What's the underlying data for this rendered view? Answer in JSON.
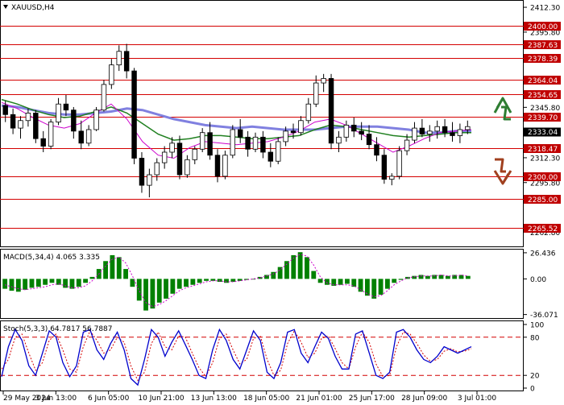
{
  "window": {
    "title": "XAUUSD,H4",
    "title_icon": "dropdown-triangle-icon"
  },
  "colors": {
    "up_candle": "#ffffff",
    "down_candle": "#000000",
    "level_line": "#d40000",
    "level_box": "#c00000",
    "ma_slow": "#8080e0",
    "ma_mid": "#208020",
    "ma_fast": "#cc00cc",
    "macd_hist": "#008000",
    "macd_signal": "#cc00cc",
    "stoch_main": "#0000cc",
    "stoch_signal": "#d40000",
    "arrow_up": "#2e7d32",
    "arrow_down": "#a0401f"
  },
  "chart_data": [
    {
      "type": "candlestick",
      "symbol": "XAUUSD",
      "timeframe": "H4",
      "ylim": [
        2255,
        2415
      ],
      "y_ticks": [
        "2412.30",
        "2395.80",
        "2345.80",
        "2329.30",
        "2312.30",
        "2295.80",
        "2262.80"
      ],
      "levels": [
        "2400.00",
        "2387.63",
        "2378.39",
        "2364.04",
        "2354.65",
        "2339.70",
        "2318.47",
        "2300.00",
        "2285.00",
        "2265.52"
      ],
      "current_price": "2333.04",
      "moving_averages": [
        {
          "color": "slow",
          "values": [
            2347,
            2346,
            2344,
            2342,
            2341,
            2341,
            2342,
            2343,
            2345,
            2344,
            2341,
            2338,
            2336,
            2334,
            2333,
            2332,
            2333,
            2332,
            2331,
            2331,
            2331,
            2332,
            2333,
            2333,
            2333,
            2332,
            2331,
            2329,
            2329,
            2330,
            2330
          ]
        },
        {
          "color": "mid",
          "values": [
            2351,
            2348,
            2344,
            2341,
            2339,
            2340,
            2343,
            2346,
            2342,
            2335,
            2328,
            2324,
            2325,
            2327,
            2327,
            2326,
            2325,
            2325,
            2326,
            2327,
            2331,
            2334,
            2333,
            2331,
            2329,
            2327,
            2326,
            2327,
            2328,
            2329,
            2329
          ]
        },
        {
          "color": "fast",
          "values": [
            2349,
            2345,
            2339,
            2334,
            2332,
            2335,
            2342,
            2348,
            2338,
            2323,
            2314,
            2312,
            2319,
            2323,
            2322,
            2321,
            2322,
            2323,
            2326,
            2330,
            2336,
            2338,
            2334,
            2328,
            2322,
            2316,
            2320,
            2325,
            2329,
            2330,
            2331
          ]
        }
      ],
      "candles": [
        [
          2347,
          2350,
          2336,
          2341
        ],
        [
          2341,
          2345,
          2328,
          2332
        ],
        [
          2332,
          2340,
          2325,
          2337
        ],
        [
          2337,
          2345,
          2333,
          2342
        ],
        [
          2342,
          2344,
          2322,
          2325
        ],
        [
          2325,
          2330,
          2316,
          2320
        ],
        [
          2320,
          2338,
          2318,
          2336
        ],
        [
          2336,
          2352,
          2334,
          2348
        ],
        [
          2348,
          2354,
          2340,
          2344
        ],
        [
          2344,
          2346,
          2325,
          2330
        ],
        [
          2330,
          2337,
          2318,
          2322
        ],
        [
          2322,
          2334,
          2320,
          2331
        ],
        [
          2331,
          2346,
          2330,
          2344
        ],
        [
          2344,
          2364,
          2343,
          2361
        ],
        [
          2361,
          2378,
          2358,
          2374
        ],
        [
          2374,
          2387,
          2370,
          2383
        ],
        [
          2383,
          2388,
          2365,
          2370
        ],
        [
          2370,
          2372,
          2308,
          2312
        ],
        [
          2312,
          2316,
          2289,
          2294
        ],
        [
          2294,
          2305,
          2286,
          2301
        ],
        [
          2301,
          2312,
          2297,
          2309
        ],
        [
          2309,
          2320,
          2305,
          2316
        ],
        [
          2316,
          2326,
          2312,
          2322
        ],
        [
          2322,
          2327,
          2298,
          2301
        ],
        [
          2301,
          2314,
          2299,
          2311
        ],
        [
          2311,
          2320,
          2308,
          2318
        ],
        [
          2318,
          2332,
          2316,
          2329
        ],
        [
          2329,
          2336,
          2311,
          2314
        ],
        [
          2314,
          2318,
          2296,
          2300
        ],
        [
          2300,
          2317,
          2298,
          2314
        ],
        [
          2314,
          2334,
          2312,
          2331
        ],
        [
          2331,
          2338,
          2322,
          2326
        ],
        [
          2326,
          2330,
          2313,
          2318
        ],
        [
          2318,
          2329,
          2316,
          2326
        ],
        [
          2326,
          2330,
          2312,
          2316
        ],
        [
          2316,
          2322,
          2306,
          2310
        ],
        [
          2310,
          2326,
          2308,
          2323
        ],
        [
          2323,
          2333,
          2320,
          2330
        ],
        [
          2330,
          2335,
          2325,
          2329
        ],
        [
          2329,
          2340,
          2327,
          2337
        ],
        [
          2337,
          2352,
          2335,
          2348
        ],
        [
          2348,
          2367,
          2346,
          2362
        ],
        [
          2362,
          2368,
          2356,
          2365
        ],
        [
          2365,
          2368,
          2318,
          2322
        ],
        [
          2322,
          2330,
          2316,
          2326
        ],
        [
          2326,
          2337,
          2323,
          2334
        ],
        [
          2334,
          2339,
          2326,
          2330
        ],
        [
          2330,
          2336,
          2324,
          2328
        ],
        [
          2328,
          2334,
          2318,
          2321
        ],
        [
          2321,
          2326,
          2310,
          2314
        ],
        [
          2314,
          2318,
          2295,
          2298
        ],
        [
          2298,
          2302,
          2294,
          2300
        ],
        [
          2300,
          2320,
          2298,
          2317
        ],
        [
          2317,
          2328,
          2314,
          2324
        ],
        [
          2324,
          2336,
          2322,
          2332
        ],
        [
          2332,
          2338,
          2326,
          2328
        ],
        [
          2328,
          2334,
          2323,
          2330
        ],
        [
          2330,
          2337,
          2325,
          2333
        ],
        [
          2333,
          2338,
          2326,
          2329
        ],
        [
          2329,
          2336,
          2323,
          2327
        ],
        [
          2327,
          2335,
          2322,
          2331
        ],
        [
          2331,
          2337,
          2328,
          2333
        ]
      ]
    },
    {
      "type": "bar",
      "title": "MACD(5,34,4)",
      "main_value": "4.065",
      "signal_value": "3.335",
      "y_ticks": [
        "26.436",
        "0.00",
        "-36.071"
      ],
      "ylim": [
        -38,
        28
      ],
      "histogram": [
        -10,
        -12,
        -13,
        -11,
        -9,
        -8,
        -6,
        -4,
        -6,
        -9,
        -10,
        -8,
        -4,
        2,
        10,
        18,
        24,
        22,
        10,
        -8,
        -22,
        -32,
        -30,
        -24,
        -20,
        -15,
        -10,
        -8,
        -6,
        -4,
        -2,
        -2,
        -3,
        -4,
        -3,
        -2,
        -1,
        0,
        2,
        4,
        7,
        12,
        18,
        24,
        27,
        22,
        8,
        -4,
        -6,
        -7,
        -6,
        -5,
        -8,
        -13,
        -17,
        -20,
        -16,
        -10,
        -4,
        -1,
        2,
        3,
        4,
        3,
        4,
        4,
        3,
        4,
        4,
        3
      ],
      "signal": [
        -6,
        -8,
        -10,
        -11,
        -10,
        -9,
        -8,
        -6,
        -5,
        -7,
        -9,
        -9,
        -7,
        -2,
        5,
        13,
        20,
        22,
        16,
        3,
        -12,
        -24,
        -28,
        -26,
        -22,
        -17,
        -12,
        -9,
        -7,
        -5,
        -3,
        -2,
        -2,
        -3,
        -3,
        -2,
        -1,
        0,
        1,
        3,
        5,
        9,
        15,
        21,
        25,
        23,
        14,
        2,
        -4,
        -6,
        -6,
        -6,
        -7,
        -11,
        -15,
        -18,
        -17,
        -12,
        -6,
        -2,
        1,
        2,
        3,
        3,
        3,
        4,
        3,
        3,
        4,
        3
      ]
    },
    {
      "type": "line",
      "title": "Stoch(5,3,3)",
      "main_value": "64.7817",
      "signal_value": "56.7887",
      "y_ticks": [
        "100",
        "80",
        "20",
        "0"
      ],
      "levels": [
        80,
        20
      ],
      "ylim": [
        0,
        100
      ],
      "main": [
        18,
        65,
        92,
        75,
        35,
        20,
        55,
        90,
        80,
        40,
        18,
        35,
        88,
        92,
        60,
        45,
        70,
        88,
        60,
        15,
        5,
        45,
        92,
        80,
        50,
        72,
        90,
        68,
        45,
        20,
        15,
        60,
        92,
        75,
        45,
        30,
        60,
        90,
        75,
        25,
        15,
        40,
        88,
        92,
        55,
        40,
        65,
        88,
        78,
        50,
        30,
        30,
        85,
        90,
        55,
        20,
        15,
        25,
        88,
        92,
        80,
        60,
        45,
        40,
        50,
        65,
        60,
        55,
        60,
        65
      ],
      "signal": [
        30,
        45,
        80,
        85,
        55,
        28,
        40,
        75,
        85,
        60,
        30,
        25,
        65,
        90,
        75,
        55,
        60,
        80,
        72,
        35,
        12,
        25,
        70,
        88,
        65,
        60,
        82,
        80,
        55,
        32,
        18,
        40,
        78,
        85,
        60,
        38,
        45,
        78,
        82,
        45,
        20,
        28,
        70,
        90,
        72,
        48,
        55,
        78,
        82,
        62,
        40,
        30,
        65,
        88,
        72,
        38,
        18,
        20,
        65,
        88,
        85,
        70,
        52,
        42,
        45,
        58,
        62,
        57,
        58,
        62
      ]
    }
  ],
  "x_axis": [
    "29 May 2024",
    "3 Jun 13:00",
    "6 Jun 05:00",
    "10 Jun 21:00",
    "13 Jun 13:00",
    "18 Jun 05:00",
    "21 Jun 01:00",
    "25 Jun 17:00",
    "28 Jun 09:00",
    "3 Jul 01:00"
  ]
}
